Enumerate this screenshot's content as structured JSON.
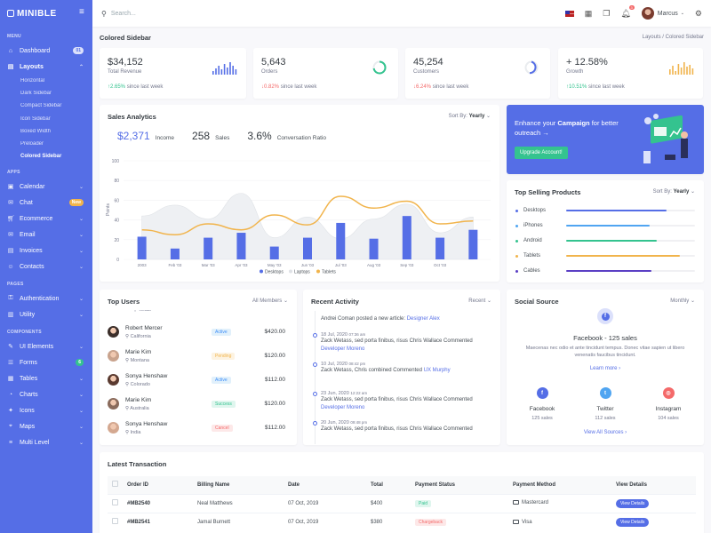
{
  "brand": {
    "name": "MINIBLE"
  },
  "sidebar": {
    "menu_title": "MENU",
    "dashboard": {
      "label": "Dashboard",
      "badge": "01"
    },
    "layouts": {
      "label": "Layouts",
      "subitems": [
        "Horizontal",
        "Dark Sidebar",
        "Compact Sidebar",
        "Icon Sidebar",
        "Boxed Width",
        "Preloader",
        "Colored Sidebar"
      ]
    },
    "apps_title": "APPS",
    "apps": [
      {
        "label": "Calendar"
      },
      {
        "label": "Chat",
        "badge": "New"
      },
      {
        "label": "Ecommerce"
      },
      {
        "label": "Email"
      },
      {
        "label": "Invoices"
      },
      {
        "label": "Contacts"
      }
    ],
    "pages_title": "PAGES",
    "pages": [
      {
        "label": "Authentication"
      },
      {
        "label": "Utility"
      }
    ],
    "components_title": "COMPONENTS",
    "components": [
      {
        "label": "UI Elements"
      },
      {
        "label": "Forms",
        "badge": "6"
      },
      {
        "label": "Tables"
      },
      {
        "label": "Charts"
      },
      {
        "label": "Icons"
      },
      {
        "label": "Maps"
      },
      {
        "label": "Multi Level"
      }
    ]
  },
  "topbar": {
    "search_placeholder": "Search...",
    "notif_count": "3",
    "user_name": "Marcus"
  },
  "page": {
    "title": "Colored Sidebar",
    "breadcrumb_parent": "Layouts",
    "breadcrumb_sep": "/",
    "breadcrumb_current": "Colored Sidebar"
  },
  "stats": [
    {
      "value": "$34,152",
      "label": "Total Revenue",
      "change": "2.65%",
      "dir": "up",
      "since": "since last week"
    },
    {
      "value": "5,643",
      "label": "Orders",
      "change": "0.82%",
      "dir": "down",
      "since": "since last week"
    },
    {
      "value": "45,254",
      "label": "Customers",
      "change": "6.24%",
      "dir": "down",
      "since": "since last week"
    },
    {
      "value": "+ 12.58%",
      "label": "Growth",
      "change": "10.51%",
      "dir": "up",
      "since": "since last week"
    }
  ],
  "sales_analytics": {
    "title": "Sales Analytics",
    "sort_label": "Sort By:",
    "sort_value": "Yearly",
    "income_value": "$2,371",
    "income_label": "Income",
    "sales_value": "258",
    "sales_label": "Sales",
    "conv_value": "3.6%",
    "conv_label": "Conversation Ratio"
  },
  "chart_data": {
    "type": "bar",
    "categories": [
      "2003",
      "Feb '03",
      "Mar '03",
      "Apr '03",
      "May '03",
      "Jun '03",
      "Jul '03",
      "Aug '03",
      "Sep '03",
      "Oct '03",
      ""
    ],
    "ylim": [
      0,
      100
    ],
    "yticks": [
      "0",
      "20",
      "40",
      "60",
      "80",
      "100"
    ],
    "ylabel": "Points",
    "legend": "bottom",
    "series": [
      {
        "name": "Desktops",
        "type": "bar",
        "color": "#556ee6",
        "values": [
          23,
          11,
          22,
          27,
          13,
          22,
          37,
          21,
          44,
          22,
          30
        ]
      },
      {
        "name": "Laptops",
        "type": "area",
        "color": "#dfe2e6",
        "values": [
          44,
          55,
          41,
          67,
          22,
          43,
          21,
          41,
          56,
          27,
          43
        ]
      },
      {
        "name": "Tablets",
        "type": "line",
        "color": "#f1b44c",
        "values": [
          30,
          25,
          36,
          30,
          45,
          35,
          64,
          52,
          59,
          36,
          39
        ]
      }
    ]
  },
  "campaign": {
    "prefix": "Enhance your ",
    "highlight": "Campaign",
    "suffix": " for better outreach",
    "arrow": "→",
    "button": "Upgrade Account!"
  },
  "top_products": {
    "title": "Top Selling Products",
    "sort_label": "Sort By:",
    "sort_value": "Yearly",
    "items": [
      {
        "name": "Desktops",
        "color": "#556ee6",
        "pct": 0.78
      },
      {
        "name": "iPhones",
        "color": "#50a5f1",
        "pct": 0.65
      },
      {
        "name": "Android",
        "color": "#34c38f",
        "pct": 0.7
      },
      {
        "name": "Tablets",
        "color": "#f1b44c",
        "pct": 0.88
      },
      {
        "name": "Cables",
        "color": "#5b3fc4",
        "pct": 0.66
      }
    ]
  },
  "top_users": {
    "title": "Top Users",
    "filter": "All Members",
    "partial_loc": "Texas",
    "users": [
      {
        "name": "Robert Mercer",
        "loc": "California",
        "status": "Active",
        "amount": "$420.00"
      },
      {
        "name": "Marie Kim",
        "loc": "Montana",
        "status": "Pending",
        "amount": "$120.00"
      },
      {
        "name": "Sonya Henshaw",
        "loc": "Colorado",
        "status": "Active",
        "amount": "$112.00"
      },
      {
        "name": "Marie Kim",
        "loc": "Australia",
        "status": "Success",
        "amount": "$120.00"
      },
      {
        "name": "Sonya Henshaw",
        "loc": "India",
        "status": "Cancel",
        "amount": "$112.00"
      }
    ]
  },
  "recent_activity": {
    "title": "Recent Activity",
    "filter": "Recent",
    "head_prefix": "Andrei Coman posted a new article: ",
    "head_link": "Designer Alex",
    "items": [
      {
        "date": "18 Jul, 2020",
        "time": "07:36 am",
        "text": "Zack Wetass, sed porta finibus, risus Chris Wallace Commented ",
        "link": "Developer Moreno"
      },
      {
        "date": "10 Jul, 2020",
        "time": "08:42 pm",
        "text": "Zack Wetass, Chris combined Commented ",
        "link": "UX Murphy"
      },
      {
        "date": "23 Jun, 2020",
        "time": "12:22 am",
        "text": "Zack Wetass, sed porta finibus, risus Chris Wallace Commented ",
        "link": "Developer Moreno"
      },
      {
        "date": "20 Jun, 2020",
        "time": "09:48 pm",
        "text": "Zack Wetass, sed porta finibus, risus Chris Wallace Commented ",
        "link": ""
      }
    ]
  },
  "social": {
    "title": "Social Source",
    "filter": "Monthly",
    "headline": "Facebook - 125 sales",
    "desc": "Maecenas nec odio et ante tincidunt tempus. Donec vitae sapien ut libero venenatis faucibus tincidunt.",
    "learn_more": "Learn more",
    "chev": "›",
    "view_all": "View All Sources",
    "networks": [
      {
        "name": "Facebook",
        "sales": "125 sales",
        "color": "#556ee6",
        "glyph": "f"
      },
      {
        "name": "Twitter",
        "sales": "112 sales",
        "color": "#50a5f1",
        "glyph": "t"
      },
      {
        "name": "Instagram",
        "sales": "104 sales",
        "color": "#f46a6a",
        "glyph": "◎"
      }
    ]
  },
  "transactions": {
    "title": "Latest Transaction",
    "headers": [
      "Order ID",
      "Billing Name",
      "Date",
      "Total",
      "Payment Status",
      "Payment Method",
      "View Details"
    ],
    "rows": [
      {
        "id": "#MB2540",
        "name": "Neal Matthews",
        "date": "07 Oct, 2019",
        "total": "$400",
        "status": "Paid",
        "method": "Mastercard",
        "btn": "View Details"
      },
      {
        "id": "#MB2541",
        "name": "Jamal Burnett",
        "date": "07 Oct, 2019",
        "total": "$380",
        "status": "Chargeback",
        "method": "Visa",
        "btn": "View Details"
      }
    ]
  }
}
